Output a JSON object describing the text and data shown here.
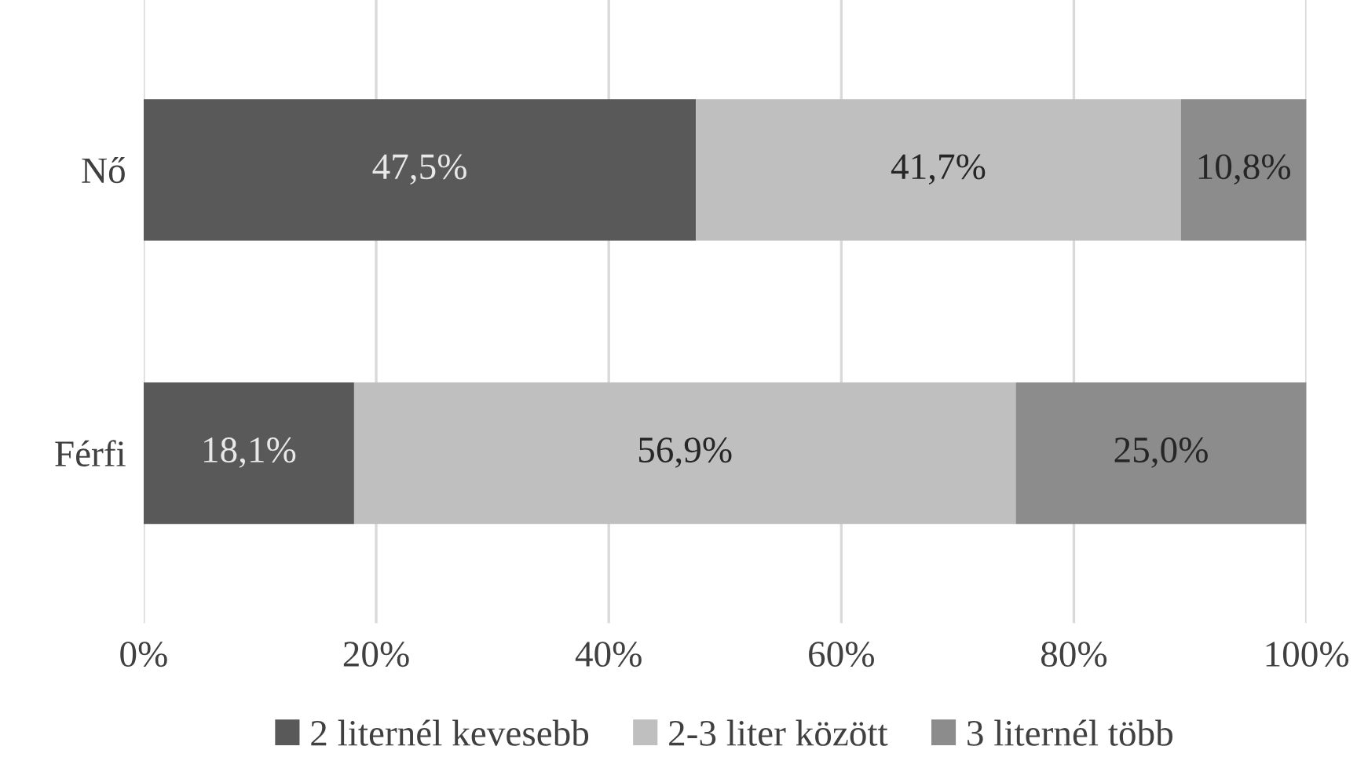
{
  "chart_data": {
    "type": "bar",
    "orientation": "horizontal",
    "stacked": true,
    "categories": [
      "Nő",
      "Férfi"
    ],
    "series": [
      {
        "name": "2 liternél kevesebb",
        "color": "#595959",
        "values": [
          47.5,
          18.1
        ],
        "value_labels": [
          "47,5%",
          "18,1%"
        ]
      },
      {
        "name": "2-3 liter között",
        "color": "#bfbfbf",
        "values": [
          41.7,
          56.9
        ],
        "value_labels": [
          "41,7%",
          "56,9%"
        ]
      },
      {
        "name": "3 liternél több",
        "color": "#8c8c8c",
        "values": [
          10.8,
          25.0
        ],
        "value_labels": [
          "10,8%",
          "25,0%"
        ]
      }
    ],
    "xlim": [
      0,
      100
    ],
    "xticks": [
      {
        "value": 0,
        "label": "0%"
      },
      {
        "value": 20,
        "label": "20%"
      },
      {
        "value": 40,
        "label": "40%"
      },
      {
        "value": 60,
        "label": "60%"
      },
      {
        "value": 80,
        "label": "80%"
      },
      {
        "value": 100,
        "label": "100%"
      }
    ],
    "grid": "x",
    "legend": "bottom"
  }
}
